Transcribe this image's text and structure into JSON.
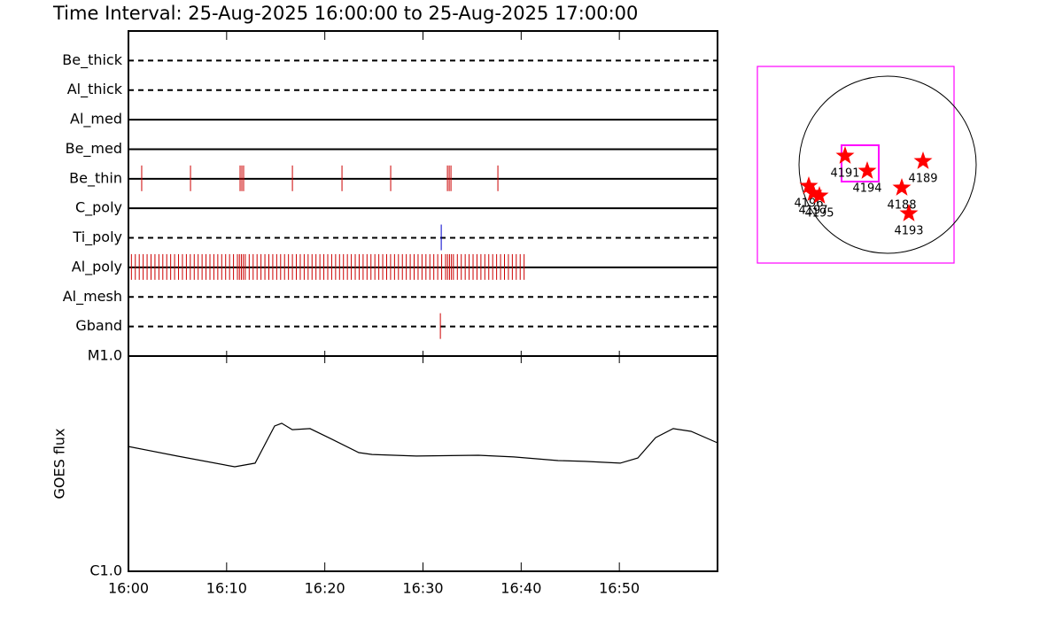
{
  "chart_data": [
    {
      "type": "event",
      "title": "Time Interval: 25-Aug-2025 16:00:00 to 25-Aug-2025 17:00:00",
      "xlim": [
        0,
        60
      ],
      "rows": [
        {
          "label": "Be_thick",
          "style": "dashed",
          "events": []
        },
        {
          "label": "Al_thick",
          "style": "dashed",
          "events": []
        },
        {
          "label": "Al_med",
          "style": "solid",
          "events": []
        },
        {
          "label": "Be_med",
          "style": "solid",
          "events": []
        },
        {
          "label": "Be_thin",
          "style": "solid",
          "color": "#cc0000",
          "events": [
            1.35,
            6.32,
            11.37,
            11.55,
            11.73,
            16.7,
            21.75,
            26.71,
            32.49,
            32.67,
            32.85,
            37.63
          ]
        },
        {
          "label": "C_poly",
          "style": "solid",
          "events": []
        },
        {
          "label": "Ti_poly",
          "style": "dashed",
          "color": "#0000cc",
          "events": [
            31.86
          ]
        },
        {
          "label": "Al_poly",
          "style": "solid",
          "color": "#cc0000",
          "events": [
            0.3,
            0.7,
            1.1,
            1.5,
            1.9,
            2.3,
            2.7,
            3.1,
            3.5,
            3.9,
            4.3,
            4.7,
            5.1,
            5.5,
            5.9,
            6.3,
            6.7,
            7.1,
            7.5,
            7.9,
            8.3,
            8.7,
            9.1,
            9.5,
            9.9,
            10.3,
            10.7,
            11.1,
            11.3,
            11.5,
            11.7,
            11.9,
            12.3,
            12.7,
            13.1,
            13.5,
            13.9,
            14.3,
            14.7,
            15.1,
            15.5,
            15.9,
            16.3,
            16.7,
            17.1,
            17.5,
            17.9,
            18.3,
            18.7,
            19.1,
            19.5,
            19.9,
            20.3,
            20.7,
            21.1,
            21.5,
            21.9,
            22.3,
            22.7,
            23.1,
            23.5,
            23.9,
            24.3,
            24.7,
            25.1,
            25.5,
            25.9,
            26.3,
            26.7,
            27.1,
            27.5,
            27.9,
            28.3,
            28.7,
            29.1,
            29.5,
            29.9,
            30.3,
            30.7,
            31.1,
            31.5,
            31.9,
            32.3,
            32.5,
            32.7,
            32.9,
            33.1,
            33.5,
            33.9,
            34.3,
            34.7,
            35.1,
            35.5,
            35.9,
            36.3,
            36.7,
            37.1,
            37.5,
            37.9,
            38.3,
            38.7,
            39.1,
            39.5,
            39.9,
            40.3
          ]
        },
        {
          "label": "Al_mesh",
          "style": "dashed",
          "events": []
        },
        {
          "label": "Gband",
          "style": "dashed",
          "color": "#cc0000",
          "events": [
            31.77
          ]
        }
      ]
    },
    {
      "type": "line",
      "ylabel": "GOES flux",
      "log": true,
      "color": "#000000",
      "x": [
        0,
        4.96,
        10.83,
        12.9,
        14.89,
        15.61,
        16.69,
        18.5,
        20.75,
        23.46,
        24.81,
        29.32,
        35.64,
        39.25,
        43.76,
        46.47,
        50.08,
        51.88,
        53.69,
        55.49,
        57.3,
        60
      ],
      "values": [
        3.8e-06,
        3.43e-06,
        3.06e-06,
        3.18e-06,
        4.73e-06,
        4.87e-06,
        4.55e-06,
        4.6e-06,
        4.1e-06,
        3.56e-06,
        3.49e-06,
        3.43e-06,
        3.46e-06,
        3.4e-06,
        3.27e-06,
        3.24e-06,
        3.18e-06,
        3.36e-06,
        4.18e-06,
        4.6e-06,
        4.47e-06,
        3.95e-06
      ],
      "xlim": [
        0,
        60
      ],
      "xticks": [
        {
          "value": 0,
          "label": "16:00"
        },
        {
          "value": 10,
          "label": "16:10"
        },
        {
          "value": 20,
          "label": "16:20"
        },
        {
          "value": 30,
          "label": "16:30"
        },
        {
          "value": 40,
          "label": "16:40"
        },
        {
          "value": 50,
          "label": "16:50"
        }
      ],
      "ylim": [
        1e-06,
        1e-05
      ],
      "yticks": [
        {
          "value": 1e-05,
          "label": "M1.0"
        },
        {
          "value": 1e-06,
          "label": "C1.0"
        }
      ]
    },
    {
      "type": "map",
      "color": "#ff00ff",
      "marker_color": "#ff0000",
      "xlim": [
        -1.47,
        0.75
      ],
      "ylim": [
        -1.11,
        1.11
      ],
      "fov": {
        "xlim": [
          -0.52,
          -0.1
        ],
        "ylim": [
          -0.19,
          0.22
        ]
      },
      "regions": [
        {
          "label": "4191",
          "x": -0.48,
          "y": 0.1
        },
        {
          "label": "4194",
          "x": -0.23,
          "y": -0.07
        },
        {
          "label": "4189",
          "x": 0.4,
          "y": 0.04
        },
        {
          "label": "4188",
          "x": 0.16,
          "y": -0.26
        },
        {
          "label": "4193",
          "x": 0.24,
          "y": -0.55
        },
        {
          "label": "4196",
          "x": -0.89,
          "y": -0.24
        },
        {
          "label": "4197",
          "x": -0.84,
          "y": -0.32
        },
        {
          "label": "4195",
          "x": -0.77,
          "y": -0.35
        }
      ]
    }
  ]
}
